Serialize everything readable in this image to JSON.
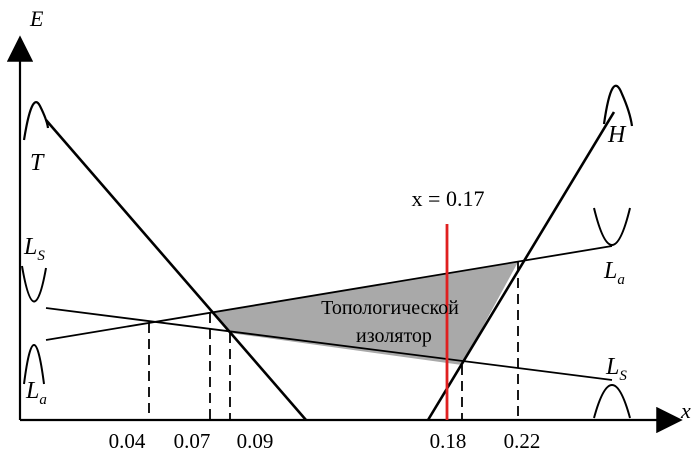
{
  "axes": {
    "y_label": "E",
    "x_label": "x"
  },
  "bands": {
    "T": "T",
    "H": "H",
    "Ls_left": "L",
    "Ls_left_sub": "S",
    "La_left": "L",
    "La_left_sub": "a",
    "La_right": "L",
    "La_right_sub": "a",
    "Ls_right": "L",
    "Ls_right_sub": "S"
  },
  "region": {
    "line1": "Топологической",
    "line2": "изолятор"
  },
  "marker": {
    "label": "x = 0.17",
    "color": "#e02020"
  },
  "ticks": [
    "0.04",
    "0.07",
    "0.09",
    "0.18",
    "0.22"
  ],
  "colors": {
    "region_fill": "#a9a9a9",
    "line": "#000000"
  }
}
